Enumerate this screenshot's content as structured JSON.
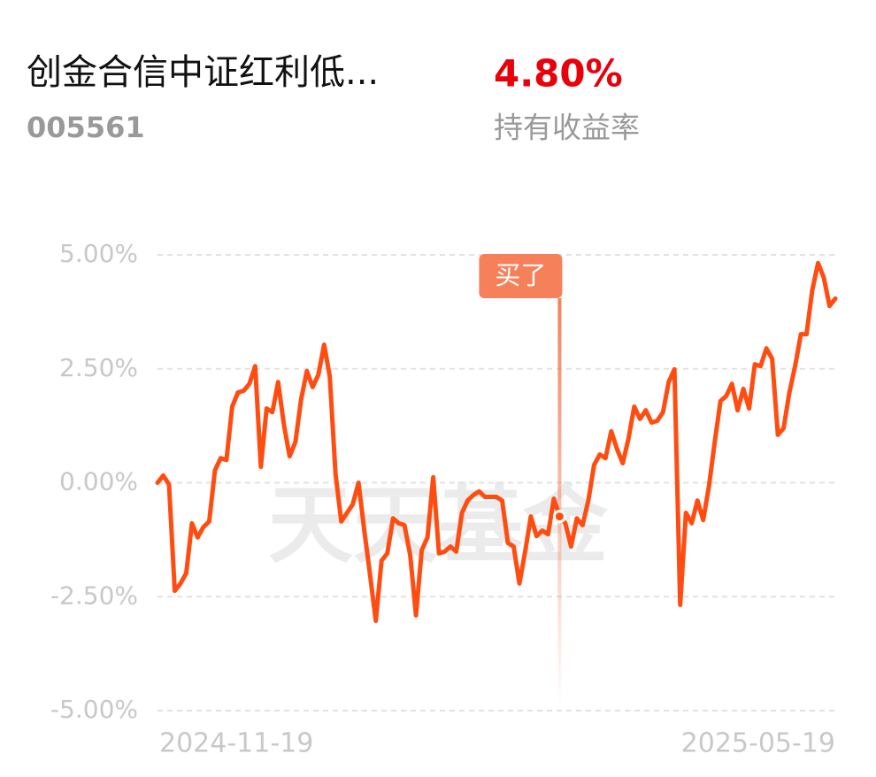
{
  "header": {
    "title": "创金合信中证红利低...",
    "code": "005561",
    "return_value": "4.80%",
    "return_label": "持有收益率"
  },
  "watermark": "天天基金",
  "chart_data": {
    "type": "line",
    "categories": [
      "2024-11-19",
      null,
      null,
      null,
      null,
      null,
      null,
      null,
      null,
      null,
      null,
      null,
      null,
      null,
      null,
      null,
      null,
      null,
      null,
      null,
      null,
      null,
      null,
      null,
      null,
      null,
      null,
      null,
      null,
      null,
      null,
      null,
      null,
      null,
      null,
      null,
      null,
      null,
      null,
      null,
      null,
      null,
      null,
      null,
      null,
      null,
      null,
      null,
      null,
      null,
      null,
      null,
      null,
      null,
      null,
      null,
      null,
      null,
      null,
      null,
      null,
      null,
      null,
      null,
      null,
      null,
      null,
      null,
      null,
      null,
      null,
      null,
      null,
      null,
      null,
      null,
      null,
      null,
      null,
      null,
      null,
      null,
      null,
      null,
      null,
      null,
      null,
      null,
      null,
      null,
      null,
      null,
      null,
      null,
      null,
      null,
      null,
      null,
      null,
      null,
      null,
      null,
      null,
      null,
      null,
      null,
      null,
      null,
      null,
      null,
      null,
      null,
      null,
      null,
      null,
      null,
      null,
      null,
      "2025-05-19"
    ],
    "series": [
      {
        "name": "持有收益率",
        "color": "#ff4d12",
        "values": [
          0,
          0.16,
          -0.04,
          -2.37,
          -2.21,
          -1.98,
          -0.89,
          -1.2,
          -0.97,
          -0.85,
          0.27,
          0.54,
          0.5,
          1.67,
          1.98,
          2.02,
          2.17,
          2.56,
          0.35,
          1.63,
          1.55,
          2.21,
          1.28,
          0.58,
          0.89,
          1.83,
          2.45,
          2.1,
          2.37,
          3.03,
          2.33,
          0.19,
          -0.85,
          -0.66,
          -0.47,
          0,
          -1.05,
          -2.02,
          -3.03,
          -1.71,
          -1.55,
          -0.78,
          -0.89,
          -0.93,
          -1.59,
          -2.91,
          -1.48,
          -1.2,
          0.12,
          -1.55,
          -1.51,
          -1.4,
          -1.51,
          -0.66,
          -0.39,
          -0.27,
          -0.19,
          -0.31,
          -0.31,
          -0.31,
          -0.39,
          -1.32,
          -1.4,
          -2.21,
          -1.51,
          -0.74,
          -1.17,
          -1.05,
          -1.13,
          -0.35,
          -0.74,
          -0.89,
          -1.4,
          -0.78,
          -0.93,
          -0.39,
          0.39,
          0.62,
          0.54,
          1.13,
          0.74,
          0.43,
          0.97,
          1.67,
          1.4,
          1.59,
          1.32,
          1.36,
          1.55,
          2.21,
          2.49,
          -2.68,
          -0.66,
          -0.89,
          -0.39,
          -0.82,
          -0.08,
          0.89,
          1.79,
          1.9,
          2.17,
          1.59,
          2.06,
          1.63,
          2.6,
          2.56,
          2.95,
          2.72,
          1.05,
          1.2,
          1.98,
          2.56,
          3.26,
          3.26,
          4.23,
          4.82,
          4.5,
          3.88,
          4.04
        ]
      }
    ],
    "annotation": {
      "label": "买了",
      "index": 70
    },
    "ylim": [
      -5,
      5
    ],
    "yticks": [
      {
        "value": -5,
        "label": "-5.00%"
      },
      {
        "value": -2.5,
        "label": "-2.50%"
      },
      {
        "value": 0,
        "label": "0.00%"
      },
      {
        "value": 2.5,
        "label": "2.50%"
      },
      {
        "value": 5,
        "label": "5.00%"
      }
    ],
    "grid": true
  }
}
